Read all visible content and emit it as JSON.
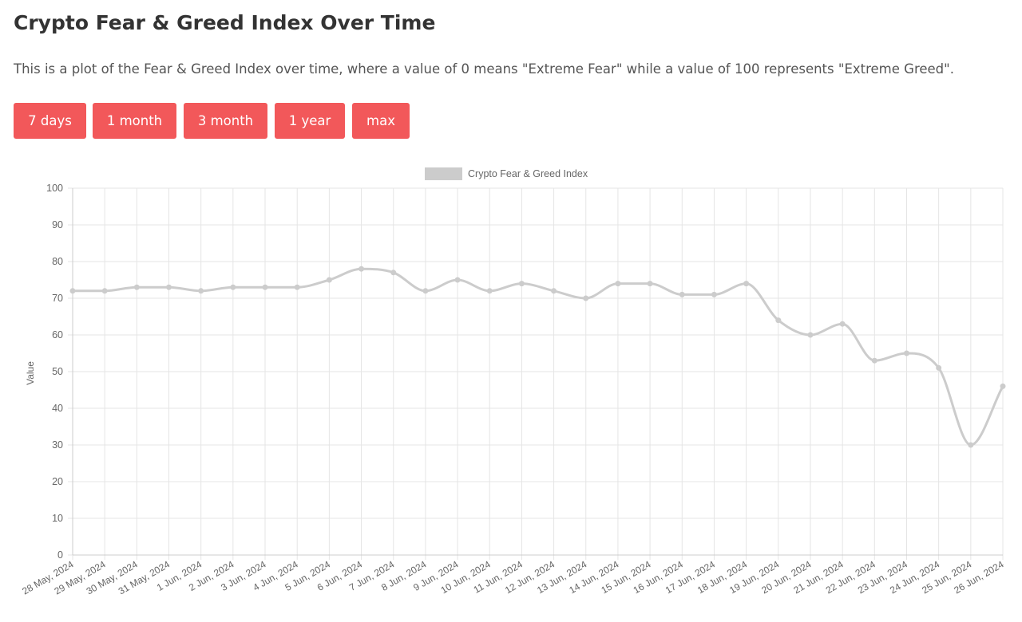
{
  "page": {
    "title": "Crypto Fear & Greed Index Over Time",
    "description": "This is a plot of the Fear & Greed Index over time, where a value of 0 means \"Extreme Fear\" while a value of 100 represents \"Extreme Greed\"."
  },
  "range_buttons": [
    {
      "label": "7 days"
    },
    {
      "label": "1 month"
    },
    {
      "label": "3 month"
    },
    {
      "label": "1 year"
    },
    {
      "label": "max"
    }
  ],
  "colors": {
    "accent": "#f2585a",
    "series": "#cccccc",
    "grid": "#e5e5e5",
    "axis_text": "#666666"
  },
  "chart_data": {
    "type": "line",
    "title": "",
    "xlabel": "",
    "ylabel": "Value",
    "ylim": [
      0,
      100
    ],
    "y_ticks": [
      0,
      10,
      20,
      30,
      40,
      50,
      60,
      70,
      80,
      90,
      100
    ],
    "legend_position": "top-center",
    "grid": true,
    "categories": [
      "28 May, 2024",
      "29 May, 2024",
      "30 May, 2024",
      "31 May, 2024",
      "1 Jun, 2024",
      "2 Jun, 2024",
      "3 Jun, 2024",
      "4 Jun, 2024",
      "5 Jun, 2024",
      "6 Jun, 2024",
      "7 Jun, 2024",
      "8 Jun, 2024",
      "9 Jun, 2024",
      "10 Jun, 2024",
      "11 Jun, 2024",
      "12 Jun, 2024",
      "13 Jun, 2024",
      "14 Jun, 2024",
      "15 Jun, 2024",
      "16 Jun, 2024",
      "17 Jun, 2024",
      "18 Jun, 2024",
      "19 Jun, 2024",
      "20 Jun, 2024",
      "21 Jun, 2024",
      "22 Jun, 2024",
      "23 Jun, 2024",
      "24 Jun, 2024",
      "25 Jun, 2024",
      "26 Jun, 2024"
    ],
    "series": [
      {
        "name": "Crypto Fear & Greed Index",
        "values": [
          72,
          72,
          73,
          73,
          72,
          73,
          73,
          73,
          75,
          78,
          77,
          72,
          75,
          72,
          74,
          72,
          70,
          74,
          74,
          71,
          71,
          74,
          64,
          60,
          63,
          53,
          55,
          51,
          30,
          46
        ]
      }
    ]
  }
}
